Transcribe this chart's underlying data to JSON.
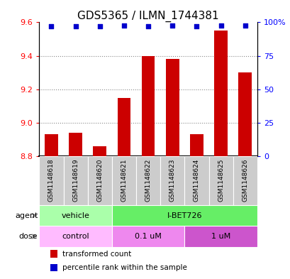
{
  "title": "GDS5365 / ILMN_1744381",
  "samples": [
    "GSM1148618",
    "GSM1148619",
    "GSM1148620",
    "GSM1148621",
    "GSM1148622",
    "GSM1148623",
    "GSM1148624",
    "GSM1148625",
    "GSM1148626"
  ],
  "transformed_counts": [
    8.93,
    8.94,
    8.86,
    9.15,
    9.4,
    9.38,
    8.93,
    9.55,
    9.3
  ],
  "dot_pct": [
    97,
    97,
    97,
    97.5,
    97,
    97.5,
    97,
    97.5,
    97.5
  ],
  "ylim_left": [
    8.8,
    9.6
  ],
  "ylim_right": [
    0,
    100
  ],
  "yticks_left": [
    8.8,
    9.0,
    9.2,
    9.4,
    9.6
  ],
  "yticks_right": [
    0,
    25,
    50,
    75,
    100
  ],
  "bar_color": "#cc0000",
  "dot_color": "#0000cc",
  "bar_bottom": 8.8,
  "agent_groups": [
    {
      "label": "vehicle",
      "start": 0,
      "end": 3,
      "color": "#aaffaa"
    },
    {
      "label": "I-BET726",
      "start": 3,
      "end": 9,
      "color": "#66ee66"
    }
  ],
  "dose_groups": [
    {
      "label": "control",
      "start": 0,
      "end": 3,
      "color": "#ffbbff"
    },
    {
      "label": "0.1 uM",
      "start": 3,
      "end": 6,
      "color": "#ee88ee"
    },
    {
      "label": "1 uM",
      "start": 6,
      "end": 9,
      "color": "#cc55cc"
    }
  ],
  "legend_items": [
    {
      "label": "transformed count",
      "color": "#cc0000"
    },
    {
      "label": "percentile rank within the sample",
      "color": "#0000cc"
    }
  ],
  "grid_yticks": [
    9.0,
    9.2,
    9.4
  ],
  "title_fontsize": 11,
  "tick_fontsize": 8,
  "label_fontsize": 8,
  "bar_width": 0.55,
  "sample_box_color": "#cccccc",
  "agent_label_color": "#333333",
  "dose_label_color": "#333333"
}
